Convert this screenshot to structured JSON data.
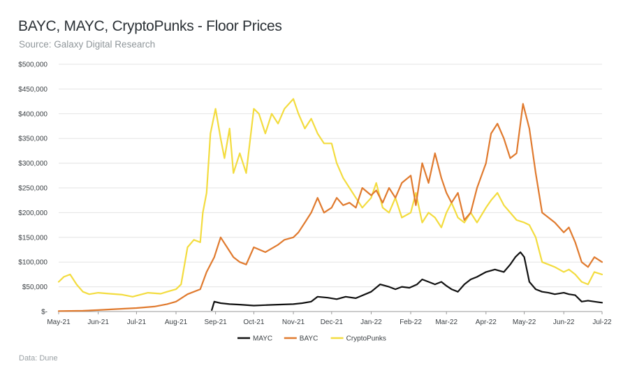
{
  "header": {
    "title": "BAYC, MAYC, CryptoPunks - Floor Prices",
    "subtitle": "Source: Galaxy Digital Research"
  },
  "footer": {
    "note": "Data: Dune"
  },
  "chart_data": {
    "type": "line",
    "title": "BAYC, MAYC, CryptoPunks - Floor Prices",
    "subtitle": "Source: Galaxy Digital Research",
    "ylim": [
      0,
      500000
    ],
    "yticks": [
      0,
      50000,
      100000,
      150000,
      200000,
      250000,
      300000,
      350000,
      400000,
      450000,
      500000
    ],
    "ytick_labels": [
      "$-",
      "$50,000",
      "$100,000",
      "$150,000",
      "$200,000",
      "$250,000",
      "$300,000",
      "$350,000",
      "$400,000",
      "$450,000",
      "$500,000"
    ],
    "xlim": [
      "2021-05-01",
      "2022-07-01"
    ],
    "xticks": [
      "2021-05-01",
      "2021-06-01",
      "2021-07-01",
      "2021-08-01",
      "2021-09-01",
      "2021-10-01",
      "2021-11-01",
      "2021-12-01",
      "2022-01-01",
      "2022-02-01",
      "2022-03-01",
      "2022-04-01",
      "2022-05-01",
      "2022-06-01",
      "2022-07-01"
    ],
    "xtick_labels": [
      "May-21",
      "Jun-21",
      "Jul-21",
      "Aug-21",
      "Sep-21",
      "Oct-21",
      "Nov-21",
      "Dec-21",
      "Jan-22",
      "Feb-22",
      "Mar-22",
      "Apr-22",
      "May-22",
      "Jun-22",
      "Jul-22"
    ],
    "grid": "horizontal",
    "legend": "bottom",
    "series": [
      {
        "name": "MAYC",
        "color": "#111111",
        "x": [
          "2021-08-29",
          "2021-08-31",
          "2021-09-05",
          "2021-09-12",
          "2021-09-20",
          "2021-10-01",
          "2021-10-10",
          "2021-10-20",
          "2021-11-01",
          "2021-11-08",
          "2021-11-15",
          "2021-11-20",
          "2021-11-28",
          "2021-12-05",
          "2021-12-12",
          "2021-12-20",
          "2022-01-01",
          "2022-01-08",
          "2022-01-15",
          "2022-01-20",
          "2022-01-25",
          "2022-01-31",
          "2022-02-06",
          "2022-02-10",
          "2022-02-15",
          "2022-02-20",
          "2022-02-25",
          "2022-03-01",
          "2022-03-05",
          "2022-03-10",
          "2022-03-15",
          "2022-03-20",
          "2022-03-25",
          "2022-04-01",
          "2022-04-08",
          "2022-04-15",
          "2022-04-20",
          "2022-04-24",
          "2022-04-28",
          "2022-05-01",
          "2022-05-05",
          "2022-05-10",
          "2022-05-15",
          "2022-05-20",
          "2022-05-25",
          "2022-06-01",
          "2022-06-05",
          "2022-06-10",
          "2022-06-15",
          "2022-06-20",
          "2022-06-25",
          "2022-07-01"
        ],
        "values": [
          3000,
          20000,
          17000,
          15000,
          14000,
          12000,
          13000,
          14000,
          15000,
          17000,
          20000,
          30000,
          28000,
          25000,
          30000,
          27000,
          40000,
          55000,
          50000,
          45000,
          50000,
          48000,
          55000,
          65000,
          60000,
          55000,
          60000,
          52000,
          45000,
          40000,
          55000,
          65000,
          70000,
          80000,
          85000,
          80000,
          95000,
          110000,
          120000,
          110000,
          60000,
          45000,
          40000,
          38000,
          35000,
          38000,
          35000,
          33000,
          20000,
          22000,
          20000,
          18000
        ]
      },
      {
        "name": "BAYC",
        "color": "#e07a2e",
        "x": [
          "2021-05-01",
          "2021-05-20",
          "2021-06-01",
          "2021-06-15",
          "2021-07-01",
          "2021-07-15",
          "2021-07-25",
          "2021-08-01",
          "2021-08-10",
          "2021-08-20",
          "2021-08-25",
          "2021-08-31",
          "2021-09-05",
          "2021-09-10",
          "2021-09-15",
          "2021-09-20",
          "2021-09-25",
          "2021-10-01",
          "2021-10-10",
          "2021-10-20",
          "2021-10-25",
          "2021-11-01",
          "2021-11-05",
          "2021-11-10",
          "2021-11-15",
          "2021-11-20",
          "2021-11-25",
          "2021-12-01",
          "2021-12-05",
          "2021-12-10",
          "2021-12-15",
          "2021-12-20",
          "2021-12-25",
          "2022-01-01",
          "2022-01-05",
          "2022-01-10",
          "2022-01-15",
          "2022-01-20",
          "2022-01-25",
          "2022-02-01",
          "2022-02-05",
          "2022-02-10",
          "2022-02-15",
          "2022-02-20",
          "2022-02-25",
          "2022-03-01",
          "2022-03-05",
          "2022-03-10",
          "2022-03-15",
          "2022-03-20",
          "2022-03-25",
          "2022-04-01",
          "2022-04-05",
          "2022-04-10",
          "2022-04-15",
          "2022-04-20",
          "2022-04-25",
          "2022-04-30",
          "2022-05-05",
          "2022-05-10",
          "2022-05-15",
          "2022-05-20",
          "2022-05-25",
          "2022-06-01",
          "2022-06-05",
          "2022-06-10",
          "2022-06-15",
          "2022-06-20",
          "2022-06-25",
          "2022-07-01"
        ],
        "values": [
          1000,
          1500,
          3000,
          5000,
          7000,
          10000,
          15000,
          20000,
          35000,
          45000,
          80000,
          110000,
          150000,
          130000,
          110000,
          100000,
          95000,
          130000,
          120000,
          135000,
          145000,
          150000,
          160000,
          180000,
          200000,
          230000,
          200000,
          210000,
          230000,
          215000,
          220000,
          210000,
          250000,
          235000,
          245000,
          220000,
          250000,
          230000,
          260000,
          275000,
          215000,
          300000,
          260000,
          320000,
          270000,
          240000,
          220000,
          240000,
          185000,
          200000,
          250000,
          300000,
          360000,
          380000,
          350000,
          310000,
          320000,
          420000,
          370000,
          280000,
          200000,
          190000,
          180000,
          160000,
          170000,
          140000,
          100000,
          90000,
          110000,
          100000
        ]
      },
      {
        "name": "CryptoPunks",
        "color": "#f3dc3f",
        "x": [
          "2021-05-01",
          "2021-05-05",
          "2021-05-10",
          "2021-05-15",
          "2021-05-20",
          "2021-05-25",
          "2021-06-01",
          "2021-06-10",
          "2021-06-20",
          "2021-06-28",
          "2021-07-01",
          "2021-07-10",
          "2021-07-20",
          "2021-07-25",
          "2021-08-01",
          "2021-08-05",
          "2021-08-10",
          "2021-08-15",
          "2021-08-20",
          "2021-08-22",
          "2021-08-25",
          "2021-08-28",
          "2021-09-01",
          "2021-09-05",
          "2021-09-08",
          "2021-09-12",
          "2021-09-15",
          "2021-09-20",
          "2021-09-25",
          "2021-10-01",
          "2021-10-05",
          "2021-10-10",
          "2021-10-15",
          "2021-10-20",
          "2021-10-25",
          "2021-11-01",
          "2021-11-05",
          "2021-11-10",
          "2021-11-15",
          "2021-11-20",
          "2021-11-25",
          "2021-12-01",
          "2021-12-05",
          "2021-12-10",
          "2021-12-15",
          "2021-12-20",
          "2021-12-25",
          "2022-01-01",
          "2022-01-05",
          "2022-01-10",
          "2022-01-15",
          "2022-01-20",
          "2022-01-25",
          "2022-02-01",
          "2022-02-05",
          "2022-02-10",
          "2022-02-15",
          "2022-02-20",
          "2022-02-25",
          "2022-03-01",
          "2022-03-05",
          "2022-03-10",
          "2022-03-15",
          "2022-03-20",
          "2022-03-25",
          "2022-04-01",
          "2022-04-05",
          "2022-04-10",
          "2022-04-15",
          "2022-04-20",
          "2022-04-25",
          "2022-05-01",
          "2022-05-05",
          "2022-05-10",
          "2022-05-15",
          "2022-05-20",
          "2022-05-25",
          "2022-06-01",
          "2022-06-05",
          "2022-06-10",
          "2022-06-15",
          "2022-06-20",
          "2022-06-25",
          "2022-07-01"
        ],
        "values": [
          60000,
          70000,
          75000,
          55000,
          40000,
          35000,
          38000,
          36000,
          34000,
          30000,
          32000,
          38000,
          36000,
          40000,
          45000,
          55000,
          130000,
          145000,
          140000,
          200000,
          240000,
          360000,
          410000,
          350000,
          310000,
          370000,
          280000,
          320000,
          280000,
          410000,
          400000,
          360000,
          400000,
          380000,
          410000,
          430000,
          400000,
          370000,
          390000,
          360000,
          340000,
          340000,
          300000,
          270000,
          250000,
          230000,
          210000,
          230000,
          260000,
          210000,
          200000,
          230000,
          190000,
          200000,
          240000,
          180000,
          200000,
          190000,
          170000,
          200000,
          220000,
          190000,
          180000,
          200000,
          180000,
          210000,
          225000,
          240000,
          215000,
          200000,
          185000,
          180000,
          175000,
          150000,
          100000,
          95000,
          90000,
          80000,
          85000,
          75000,
          60000,
          55000,
          80000,
          75000
        ]
      }
    ]
  }
}
